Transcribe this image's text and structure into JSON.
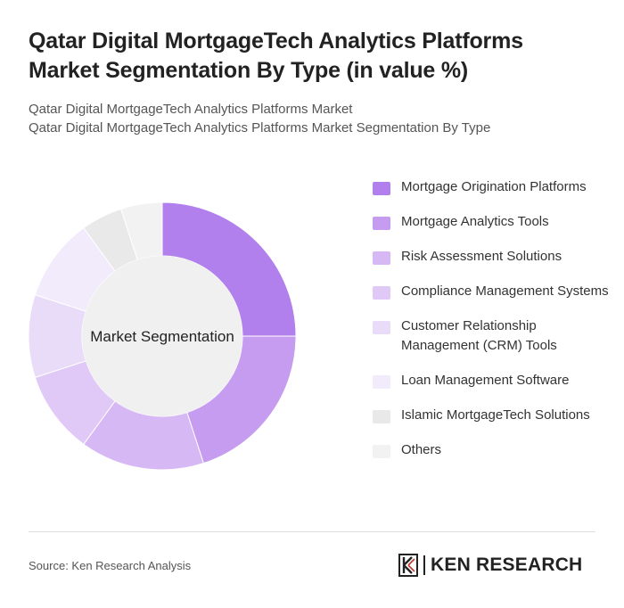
{
  "header": {
    "title": "Qatar Digital MortgageTech Analytics Platforms Market Segmentation By Type (in value %)",
    "subtitle_line1": "Qatar Digital MortgageTech Analytics Platforms Market",
    "subtitle_line2": "Qatar Digital MortgageTech Analytics Platforms Market Segmentation By Type"
  },
  "chart_data": {
    "type": "pie",
    "style": "donut",
    "center_label": "Market Segmentation",
    "legend_position": "right",
    "categories": [
      "Mortgage Origination Platforms",
      "Mortgage Analytics Tools",
      "Risk Assessment Solutions",
      "Compliance Management Systems",
      "Customer Relationship Management (CRM) Tools",
      "Loan Management Software",
      "Islamic MortgageTech Solutions",
      "Others"
    ],
    "values": [
      25,
      20,
      15,
      10,
      10,
      10,
      5,
      5
    ],
    "colors": [
      "#b180ec",
      "#c59cef",
      "#d6b9f4",
      "#e0c9f7",
      "#e9dcf9",
      "#f2ebfb",
      "#e9e9e9",
      "#f2f2f2"
    ]
  },
  "footer": {
    "source": "Source: Ken Research Analysis",
    "brand": "KEN RESEARCH"
  }
}
